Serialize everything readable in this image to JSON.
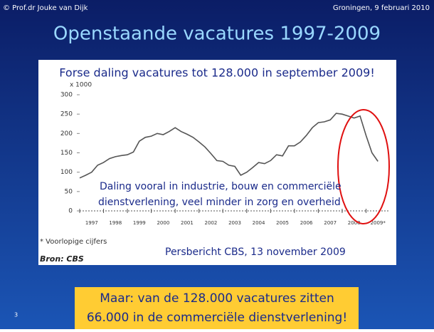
{
  "slide": {
    "author": "© Prof.dr Jouke van Dijk",
    "date": "Groningen, 9 februari 2010",
    "title": "Openstaande vacatures 1997-2009",
    "callout": [
      "Maar: van de 128.000 vacatures zitten",
      "66.000 in de commerciële dienstverlening!"
    ],
    "page_number": "3"
  },
  "chart_data": {
    "type": "line",
    "title": "Forse daling vacatures tot 128.000 in september 2009!",
    "y_label": "x 1000",
    "annotation": [
      "Daling vooral in industrie, bouw en commerciële",
      "dienstverlening, veel minder in zorg en overheid"
    ],
    "note": "* Voorlopige cijfers",
    "source": "Bron: CBS",
    "reference": "Persbericht CBS, 13 november 2009",
    "color": "#555555",
    "x": [
      1997,
      1997.25,
      1997.5,
      1997.75,
      1998,
      1998.25,
      1998.5,
      1998.75,
      1999,
      1999.25,
      1999.5,
      1999.75,
      2000,
      2000.25,
      2000.5,
      2000.75,
      2001,
      2001.25,
      2001.5,
      2001.75,
      2002,
      2002.25,
      2002.5,
      2002.75,
      2003,
      2003.25,
      2003.5,
      2003.75,
      2004,
      2004.25,
      2004.5,
      2004.75,
      2005,
      2005.25,
      2005.5,
      2005.75,
      2006,
      2006.25,
      2006.5,
      2006.75,
      2007,
      2007.25,
      2007.5,
      2007.75,
      2008,
      2008.25,
      2008.5,
      2008.75,
      2009,
      2009.25,
      2009.5
    ],
    "values": [
      85,
      92,
      100,
      118,
      125,
      135,
      140,
      143,
      145,
      152,
      180,
      190,
      193,
      200,
      197,
      205,
      215,
      205,
      198,
      190,
      178,
      165,
      148,
      130,
      128,
      118,
      115,
      92,
      100,
      112,
      125,
      122,
      130,
      145,
      142,
      168,
      168,
      178,
      195,
      215,
      228,
      230,
      235,
      252,
      250,
      245,
      240,
      245,
      195,
      150,
      128
    ],
    "xlim": [
      1997,
      2010
    ],
    "xticks": [
      1997,
      1998,
      1999,
      2000,
      2001,
      2002,
      2003,
      2004,
      2005,
      2006,
      2007,
      2008,
      {
        "value": 2009,
        "label": "2009*"
      }
    ],
    "ylim": [
      0,
      300
    ],
    "yticks": [
      0,
      50,
      100,
      150,
      200,
      250,
      300
    ],
    "grid": false
  }
}
